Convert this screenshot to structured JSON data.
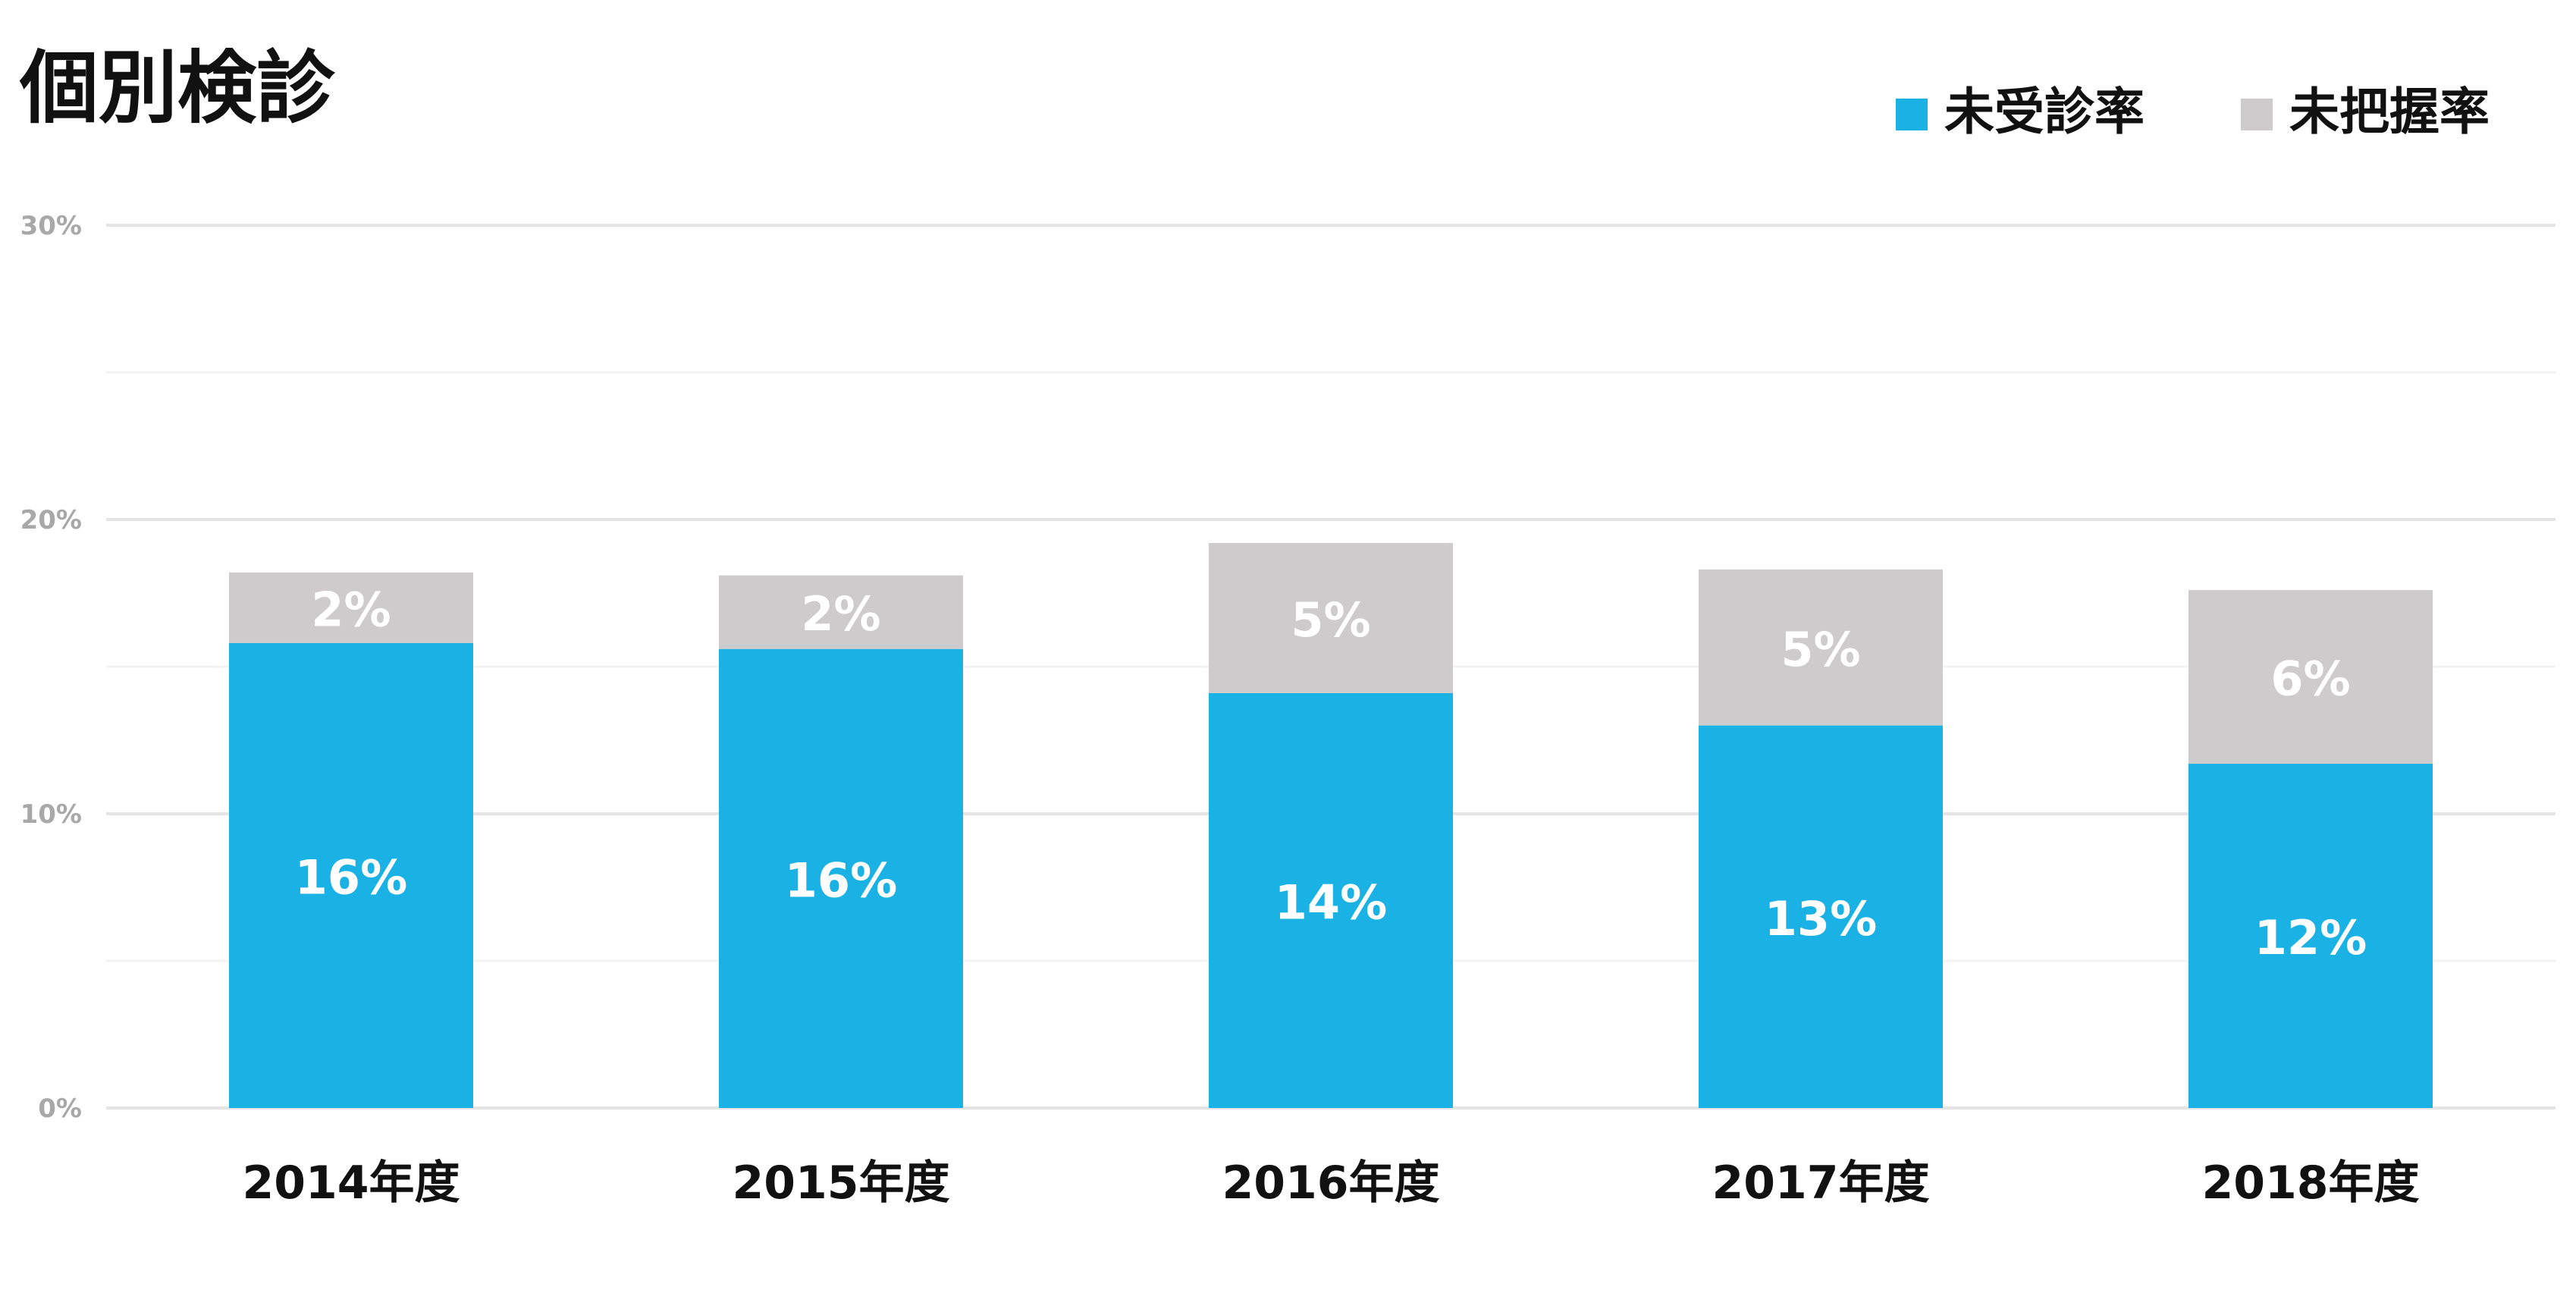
{
  "chart_data": {
    "type": "bar",
    "stacked": true,
    "title": "個別検診",
    "categories": [
      "2014年度",
      "2015年度",
      "2016年度",
      "2017年度",
      "2018年度"
    ],
    "series": [
      {
        "name": "未受診率",
        "color": "#1ab2e4",
        "values": [
          15.8,
          15.6,
          14.1,
          13.0,
          11.7
        ],
        "labels": [
          "16%",
          "16%",
          "14%",
          "13%",
          "12%"
        ]
      },
      {
        "name": "未把握率",
        "color": "#cdcbcc",
        "values": [
          2.4,
          2.5,
          5.1,
          5.3,
          5.9
        ],
        "labels": [
          "2%",
          "2%",
          "5%",
          "5%",
          "6%"
        ]
      }
    ],
    "ylim": [
      0,
      30
    ],
    "yticks": [
      "0%",
      "10%",
      "20%",
      "30%"
    ],
    "ytick_values": [
      0,
      10,
      20,
      30
    ],
    "minor_grid": [
      5,
      15,
      25
    ],
    "grid": true,
    "legend_position": "top-right"
  }
}
